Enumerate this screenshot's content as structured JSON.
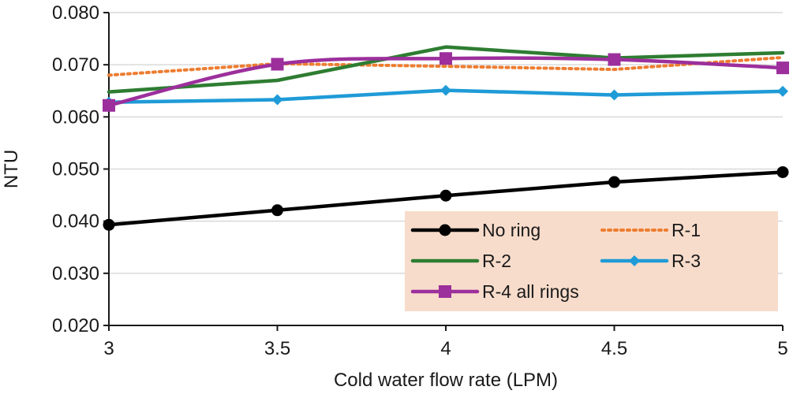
{
  "chart_data": {
    "type": "line",
    "title": "",
    "xlabel": "Cold water flow rate (LPM)",
    "ylabel": "NTU",
    "x": [
      3,
      3.5,
      4,
      4.5,
      5
    ],
    "x_tick_labels": [
      "3",
      "3.5",
      "4",
      "4.5",
      "5"
    ],
    "xlim": [
      3,
      5
    ],
    "ylim": [
      0.02,
      0.08
    ],
    "y_ticks": [
      0.02,
      0.03,
      0.04,
      0.05,
      0.06,
      0.07,
      0.08
    ],
    "y_tick_labels": [
      "0.020",
      "0.030",
      "0.040",
      "0.050",
      "0.060",
      "0.070",
      "0.080"
    ],
    "grid": "horizontal",
    "legend_position": "bottom-right",
    "legend_background": "#f8dccb",
    "series": [
      {
        "name": "No ring",
        "values": [
          0.0393,
          0.0421,
          0.0449,
          0.0475,
          0.0494
        ],
        "color": "#000000",
        "line": "solid",
        "marker": "circle",
        "smooth": false
      },
      {
        "name": "R-1",
        "values": [
          0.068,
          0.0702,
          0.0697,
          0.0691,
          0.0714
        ],
        "color": "#ed7d31",
        "line": "dotted",
        "marker": "none",
        "smooth": false
      },
      {
        "name": "R-2",
        "values": [
          0.0648,
          0.067,
          0.0734,
          0.0713,
          0.0723
        ],
        "color": "#2e7d32",
        "line": "solid",
        "marker": "none",
        "smooth": false
      },
      {
        "name": "R-3",
        "values": [
          0.0628,
          0.0633,
          0.0651,
          0.0642,
          0.0649
        ],
        "color": "#1f9bd7",
        "line": "solid",
        "marker": "diamond",
        "smooth": false
      },
      {
        "name": "R-4 all rings",
        "values": [
          0.0622,
          0.0701,
          0.0712,
          0.071,
          0.0694
        ],
        "color": "#9c2f9c",
        "line": "solid",
        "marker": "square",
        "smooth": true
      }
    ]
  }
}
